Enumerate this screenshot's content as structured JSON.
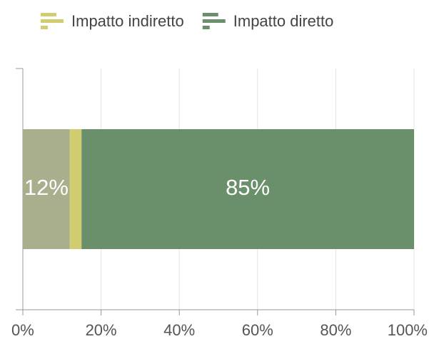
{
  "chart_data": {
    "type": "stacked-bar-horizontal",
    "series": [
      {
        "color": "#a9ae8d",
        "values": [
          12
        ],
        "value_labels": [
          "12%"
        ]
      },
      {
        "name": "Impatto indiretto",
        "color": "#d2ce6f",
        "values": [
          3
        ]
      },
      {
        "name": "Impatto diretto",
        "color": "#6a8f6b",
        "values": [
          85
        ],
        "value_labels": [
          "85%"
        ]
      }
    ],
    "xlim": [
      0,
      100
    ],
    "xticks": [
      {
        "value": 0,
        "label": "0%"
      },
      {
        "value": 20,
        "label": "20%"
      },
      {
        "value": 40,
        "label": "40%"
      },
      {
        "value": 60,
        "label": "60%"
      },
      {
        "value": 80,
        "label": "80%"
      },
      {
        "value": 100,
        "label": "100%"
      }
    ],
    "grid": true,
    "legend": "top"
  }
}
